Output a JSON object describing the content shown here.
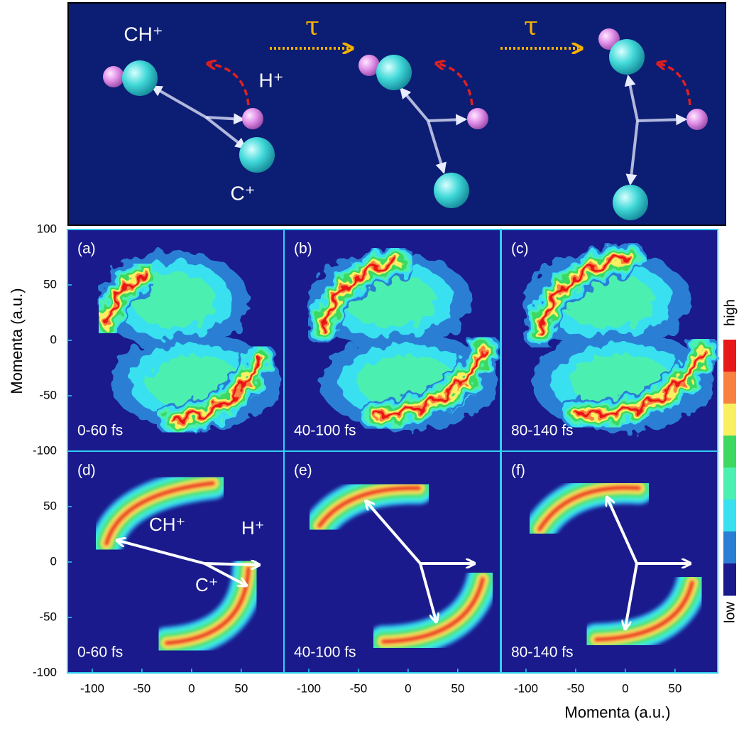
{
  "schematic": {
    "tau": "τ",
    "ch": "CH⁺",
    "h": "H⁺",
    "c": "C⁺"
  },
  "panels": [
    {
      "label": "(a)",
      "window": "0-60 fs"
    },
    {
      "label": "(b)",
      "window": "40-100 fs"
    },
    {
      "label": "(c)",
      "window": "80-140 fs"
    },
    {
      "label": "(d)",
      "window": "0-60 fs",
      "ch": "CH⁺",
      "h": "H⁺",
      "c": "C⁺"
    },
    {
      "label": "(e)",
      "window": "40-100 fs"
    },
    {
      "label": "(f)",
      "window": "80-140 fs"
    }
  ],
  "axes": {
    "xlabel": "Momenta (a.u.)",
    "ylabel": "Momenta (a.u.)",
    "xlim": [
      -125,
      93
    ],
    "xticks": [
      -100,
      -50,
      0,
      50
    ],
    "ylim": [
      -100,
      100
    ],
    "yticks_top": [
      100,
      50,
      0,
      -50,
      -100
    ],
    "yticks_bottom": [
      50,
      0,
      -50,
      -100
    ]
  },
  "colorbar": {
    "high": "high",
    "low": "low",
    "colors": [
      "#e81818",
      "#f88040",
      "#f8f060",
      "#3cd860",
      "#4cf0b0",
      "#38e0f0",
      "#2a7fd4",
      "#1a1a8c"
    ]
  }
}
